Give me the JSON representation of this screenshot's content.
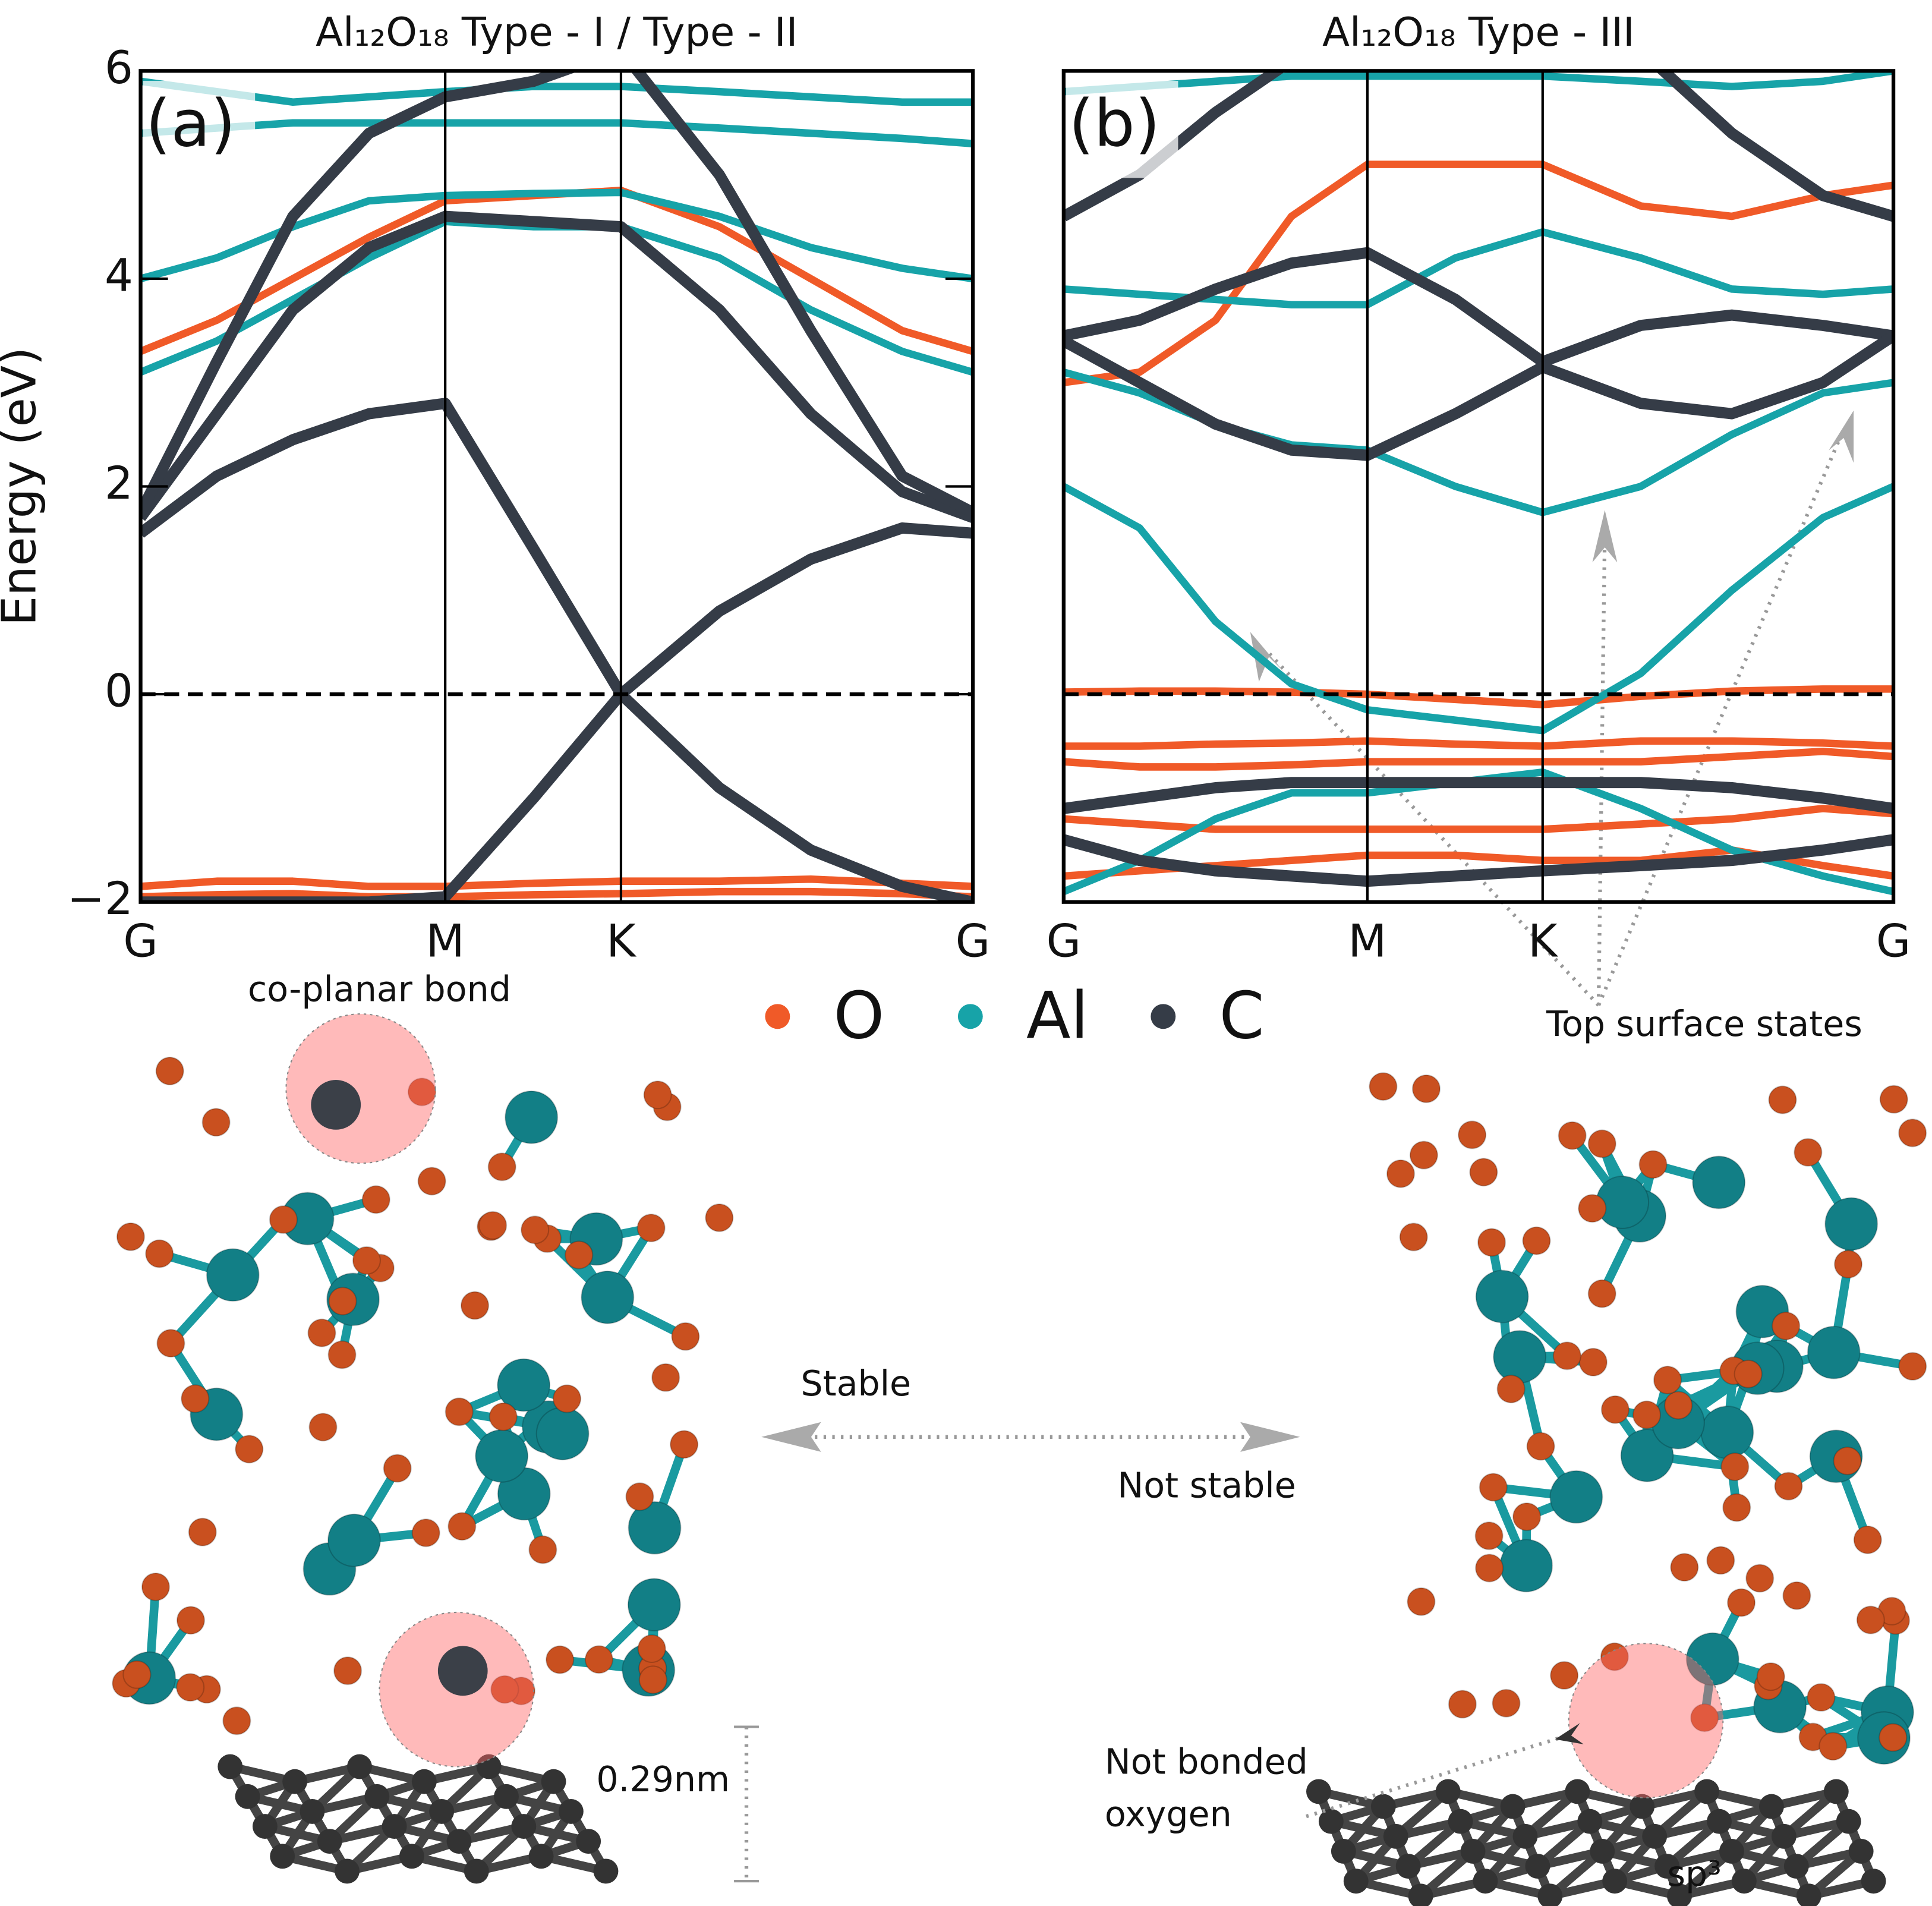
{
  "chart_data": [
    {
      "type": "band",
      "title": "Al₁₂O₁₈  Type - I / Type - II",
      "panel": "(a)",
      "ylabel": "Energy (eV)",
      "x": [
        0,
        0.25,
        0.5,
        0.75,
        1,
        1.29,
        1.577,
        1.9,
        2.2,
        2.5,
        2.732
      ],
      "xlim": [
        0,
        2.732
      ],
      "xticks": [
        {
          "value": 0,
          "label": "G"
        },
        {
          "value": 1,
          "label": "M"
        },
        {
          "value": 1.577,
          "label": "K"
        },
        {
          "value": 2.732,
          "label": "G"
        }
      ],
      "ylim": [
        -2,
        6
      ],
      "yticks": [
        {
          "value": -2,
          "label": "−2"
        },
        0,
        2,
        4,
        6
      ],
      "reference_line": 0,
      "series": [
        {
          "name": "O",
          "color": "#f05a28",
          "values": [
            -1.85,
            -1.8,
            -1.8,
            -1.85,
            -1.85,
            -1.82,
            -1.8,
            -1.8,
            -1.78,
            -1.82,
            -1.85
          ]
        },
        {
          "name": "O",
          "color": "#f05a28",
          "values": [
            -1.95,
            -1.93,
            -1.92,
            -1.95,
            -1.95,
            -1.93,
            -1.92,
            -1.9,
            -1.9,
            -1.92,
            -1.95
          ]
        },
        {
          "name": "O",
          "color": "#f05a28",
          "values": [
            3.3,
            3.6,
            4.0,
            4.4,
            4.75,
            4.8,
            4.85,
            4.5,
            4.0,
            3.5,
            3.3
          ]
        },
        {
          "name": "Al",
          "color": "#17a3a8",
          "values": [
            4.0,
            4.2,
            4.5,
            4.75,
            4.8,
            4.82,
            4.83,
            4.6,
            4.3,
            4.1,
            4.0
          ]
        },
        {
          "name": "Al",
          "color": "#17a3a8",
          "values": [
            5.4,
            5.45,
            5.5,
            5.5,
            5.5,
            5.5,
            5.5,
            5.45,
            5.4,
            5.35,
            5.3
          ]
        },
        {
          "name": "Al",
          "color": "#17a3a8",
          "values": [
            3.1,
            3.4,
            3.8,
            4.2,
            4.55,
            4.5,
            4.5,
            4.2,
            3.7,
            3.3,
            3.1
          ]
        },
        {
          "name": "Al",
          "color": "#17a3a8",
          "values": [
            5.9,
            5.8,
            5.7,
            5.75,
            5.8,
            5.85,
            5.85,
            5.8,
            5.75,
            5.7,
            5.7
          ]
        },
        {
          "name": "C",
          "color": "#353c47",
          "values": [
            1.55,
            2.1,
            2.45,
            2.7,
            2.8,
            1.4,
            0,
            0.8,
            1.3,
            1.6,
            1.55
          ]
        },
        {
          "name": "C",
          "color": "#353c47",
          "values": [
            -2,
            -2,
            -2,
            -2,
            -1.95,
            -1.0,
            0,
            -0.9,
            -1.5,
            -1.85,
            -2
          ]
        },
        {
          "name": "C",
          "color": "#353c47",
          "values": [
            1.7,
            2.7,
            3.7,
            4.3,
            4.6,
            4.55,
            4.5,
            3.7,
            2.7,
            1.95,
            1.7
          ]
        },
        {
          "name": "C",
          "color": "#353c47",
          "values": [
            1.75,
            3.2,
            4.6,
            5.4,
            5.75,
            5.9,
            6.2,
            5.0,
            3.5,
            2.1,
            1.75
          ]
        }
      ]
    },
    {
      "type": "band",
      "title": "Al₁₂O₁₈  Type - III",
      "panel": "(b)",
      "x": [
        0,
        0.25,
        0.5,
        0.75,
        1,
        1.29,
        1.577,
        1.9,
        2.2,
        2.5,
        2.732
      ],
      "xlim": [
        0,
        2.732
      ],
      "xticks": [
        {
          "value": 0,
          "label": "G"
        },
        {
          "value": 1,
          "label": "M"
        },
        {
          "value": 1.577,
          "label": "K"
        },
        {
          "value": 2.732,
          "label": "G"
        }
      ],
      "ylim": [
        -2,
        6
      ],
      "reference_line": 0,
      "series": [
        {
          "name": "O",
          "color": "#f05a28",
          "values": [
            0.02,
            0.03,
            0.03,
            0.02,
            0,
            -0.05,
            -0.1,
            -0.02,
            0.03,
            0.05,
            0.05
          ]
        },
        {
          "name": "O",
          "color": "#f05a28",
          "values": [
            -0.5,
            -0.5,
            -0.48,
            -0.47,
            -0.45,
            -0.48,
            -0.5,
            -0.45,
            -0.45,
            -0.47,
            -0.5
          ]
        },
        {
          "name": "O",
          "color": "#f05a28",
          "values": [
            -0.65,
            -0.7,
            -0.7,
            -0.68,
            -0.65,
            -0.65,
            -0.65,
            -0.65,
            -0.6,
            -0.55,
            -0.6
          ]
        },
        {
          "name": "O",
          "color": "#f05a28",
          "values": [
            -1.2,
            -1.25,
            -1.3,
            -1.3,
            -1.3,
            -1.3,
            -1.3,
            -1.25,
            -1.2,
            -1.1,
            -1.15
          ]
        },
        {
          "name": "O",
          "color": "#f05a28",
          "values": [
            -1.75,
            -1.7,
            -1.65,
            -1.6,
            -1.55,
            -1.55,
            -1.6,
            -1.6,
            -1.5,
            -1.65,
            -1.75
          ]
        },
        {
          "name": "O",
          "color": "#f05a28",
          "values": [
            3.0,
            3.1,
            3.6,
            4.6,
            5.1,
            5.1,
            5.1,
            4.7,
            4.6,
            4.8,
            4.9
          ]
        },
        {
          "name": "Al",
          "color": "#17a3a8",
          "values": [
            2.0,
            1.6,
            0.7,
            0.1,
            -0.15,
            -0.25,
            -0.35,
            0.2,
            1.0,
            1.7,
            2.0
          ]
        },
        {
          "name": "Al",
          "color": "#17a3a8",
          "values": [
            3.1,
            2.9,
            2.6,
            2.4,
            2.35,
            2.0,
            1.75,
            2.0,
            2.5,
            2.9,
            3.0
          ]
        },
        {
          "name": "Al",
          "color": "#17a3a8",
          "values": [
            3.9,
            3.85,
            3.8,
            3.75,
            3.75,
            4.2,
            4.45,
            4.2,
            3.9,
            3.85,
            3.9
          ]
        },
        {
          "name": "Al",
          "color": "#17a3a8",
          "values": [
            -1.9,
            -1.6,
            -1.2,
            -0.95,
            -0.95,
            -0.85,
            -0.75,
            -1.1,
            -1.5,
            -1.75,
            -1.9
          ]
        },
        {
          "name": "Al",
          "color": "#17a3a8",
          "values": [
            5.8,
            5.85,
            5.9,
            5.95,
            5.95,
            5.95,
            5.95,
            5.9,
            5.85,
            5.9,
            6.0
          ]
        },
        {
          "name": "C",
          "color": "#353c47",
          "values": [
            3.45,
            3.6,
            3.9,
            4.15,
            4.25,
            3.8,
            3.2,
            3.55,
            3.65,
            3.55,
            3.45
          ]
        },
        {
          "name": "C",
          "color": "#353c47",
          "values": [
            3.4,
            3.0,
            2.6,
            2.35,
            2.3,
            2.7,
            3.15,
            2.8,
            2.7,
            3.0,
            3.45
          ]
        },
        {
          "name": "C",
          "color": "#353c47",
          "values": [
            -1.1,
            -1.0,
            -0.9,
            -0.85,
            -0.85,
            -0.85,
            -0.85,
            -0.85,
            -0.9,
            -1.0,
            -1.1
          ]
        },
        {
          "name": "C",
          "color": "#353c47",
          "values": [
            -1.4,
            -1.6,
            -1.7,
            -1.75,
            -1.8,
            -1.75,
            -1.7,
            -1.65,
            -1.6,
            -1.5,
            -1.4
          ]
        },
        {
          "name": "C",
          "color": "#353c47",
          "values": [
            4.6,
            5.0,
            5.6,
            6.1,
            6.3,
            6.3,
            6.3,
            6.2,
            5.4,
            4.8,
            4.6
          ]
        }
      ]
    }
  ],
  "annotations": {
    "co_planar": "co-planar bond",
    "top_surface": "Top surface states",
    "stable": "Stable",
    "not_stable": "Not stable",
    "distance": "0.29nm",
    "not_bonded": [
      "Not bonded",
      "oxygen"
    ],
    "sp3": "sp³"
  }
}
